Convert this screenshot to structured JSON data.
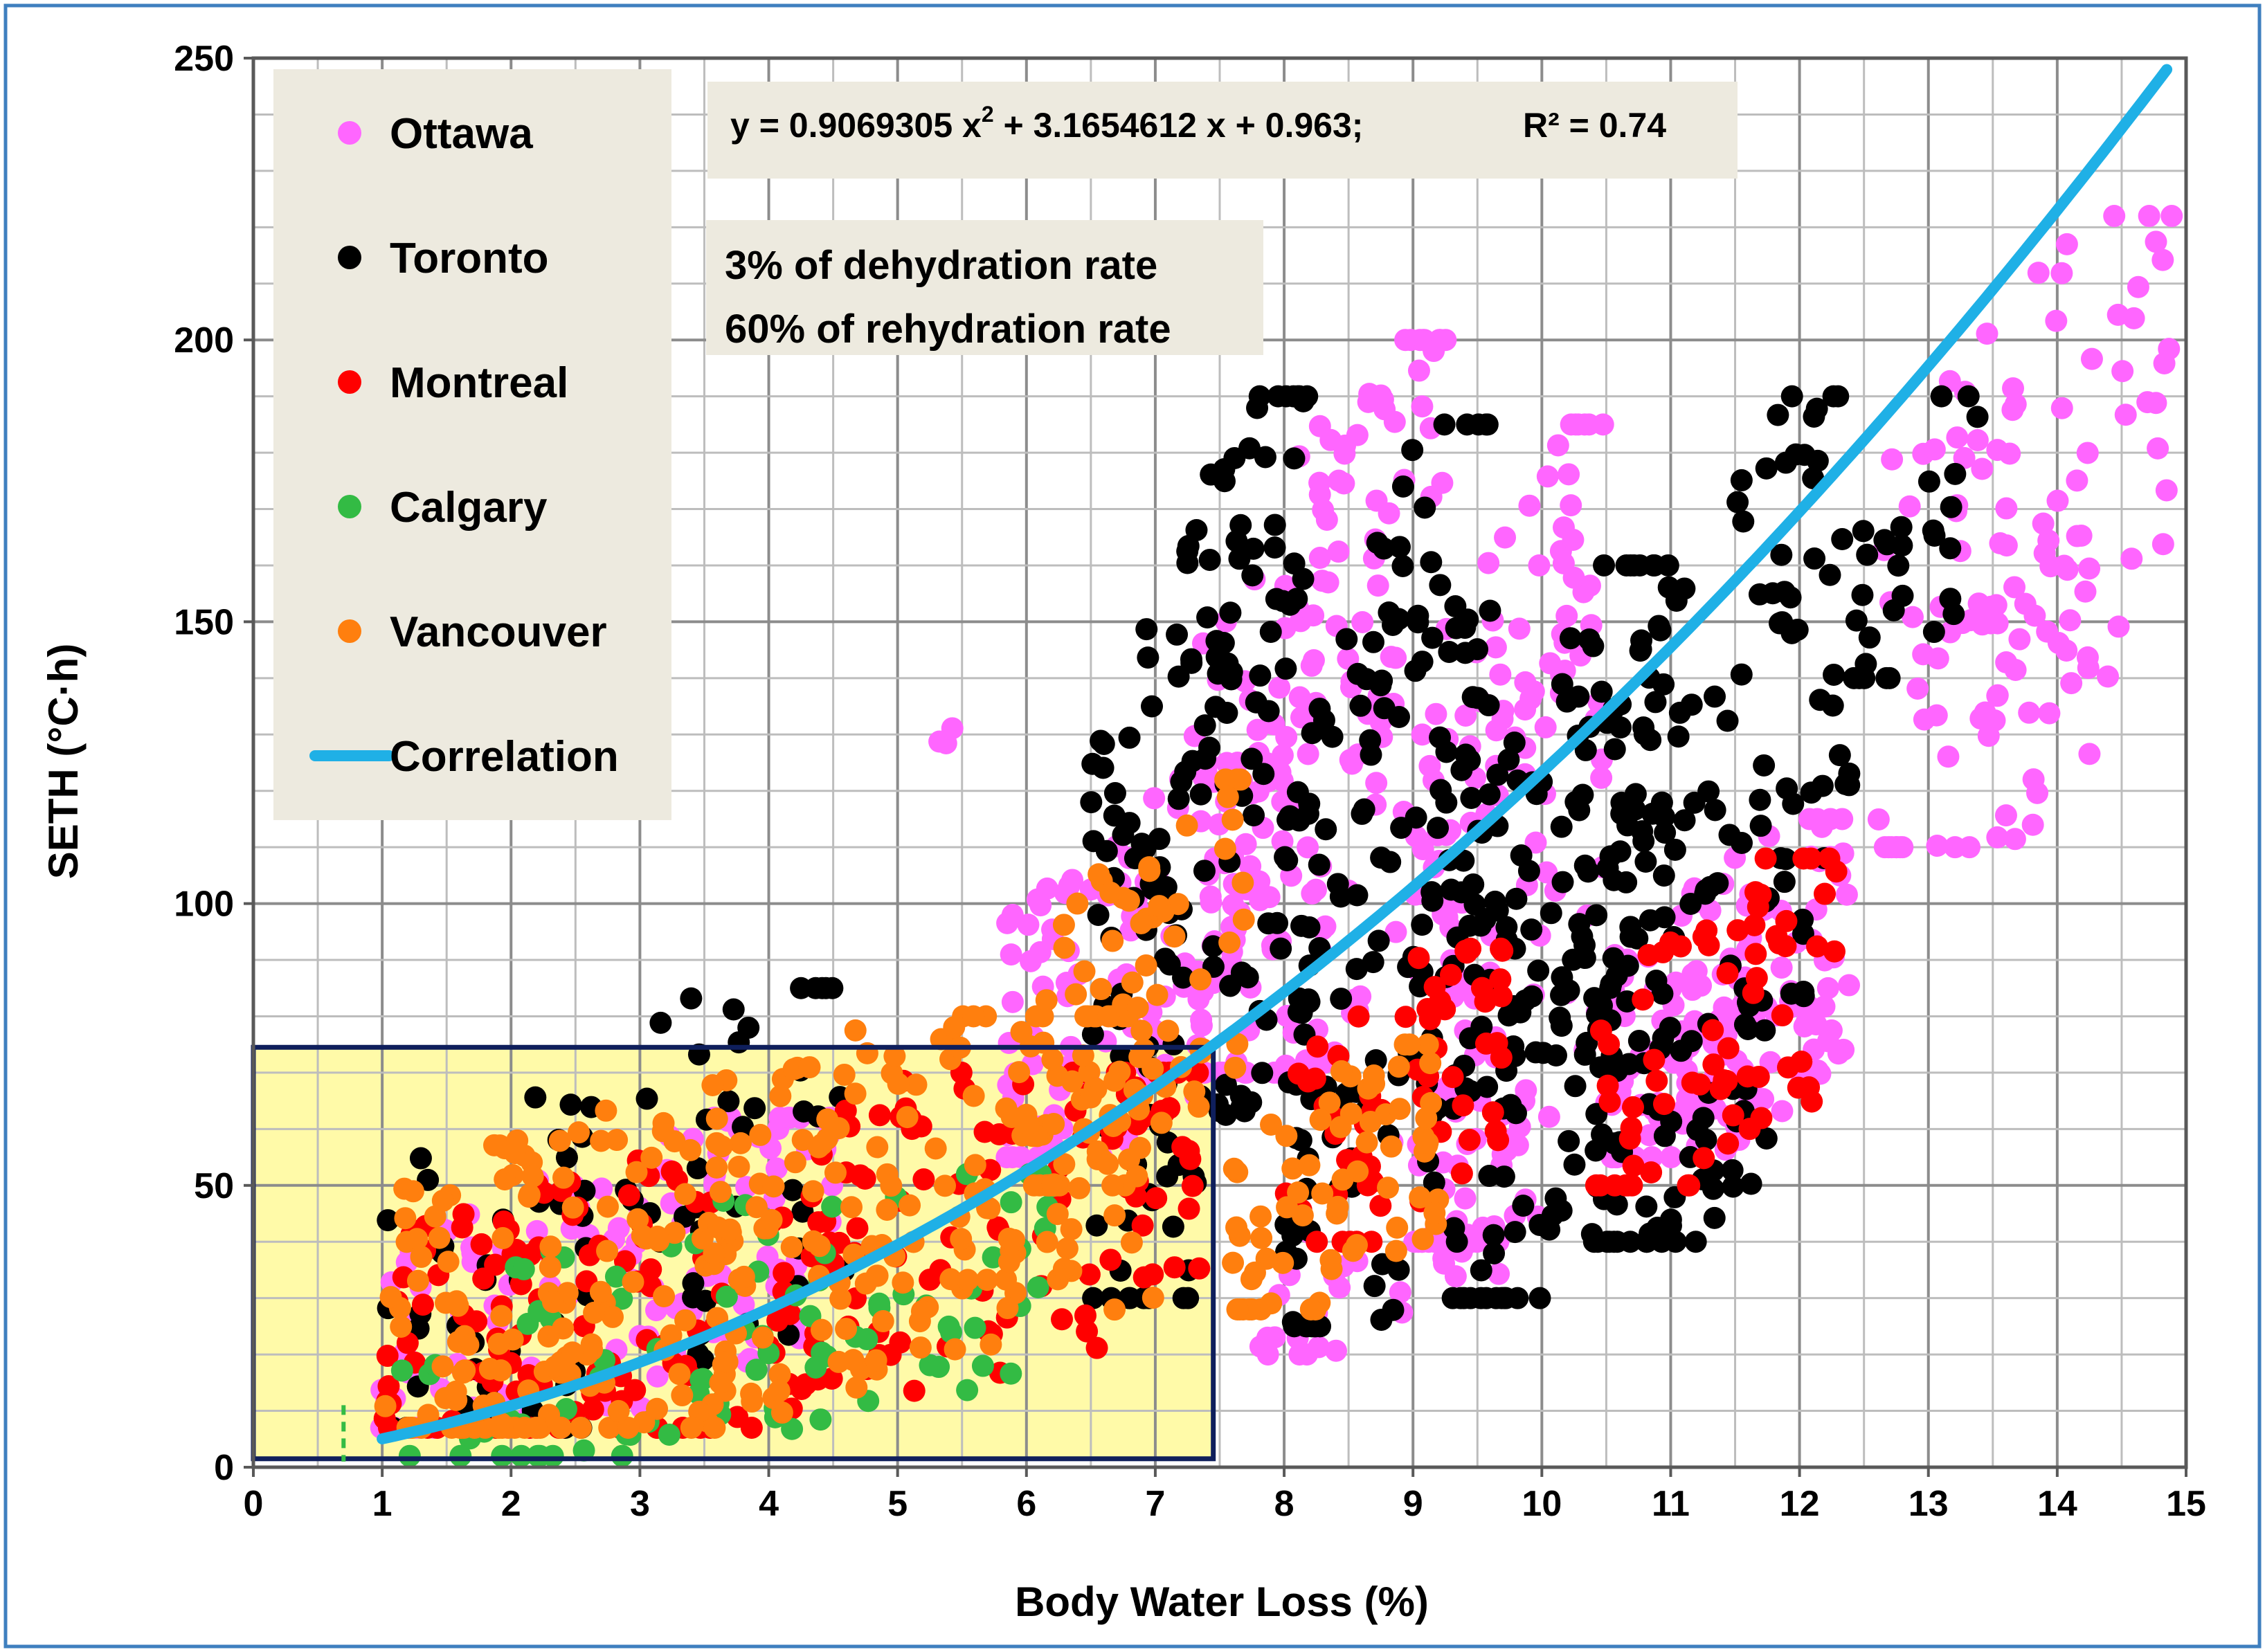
{
  "chart_data": {
    "type": "scatter",
    "title": "",
    "xlabel": "Body Water Loss (%)",
    "ylabel": "SETH (°C·h)",
    "xlim": [
      0,
      15
    ],
    "ylim": [
      0,
      250
    ],
    "x_ticks": [
      "0",
      "1",
      "2",
      "3",
      "4",
      "5",
      "6",
      "7",
      "8",
      "9",
      "10",
      "11",
      "12",
      "13",
      "14",
      "15"
    ],
    "y_ticks": [
      "0",
      "50",
      "100",
      "150",
      "200",
      "250"
    ],
    "grid": "major and minor gridlines",
    "legend_position": "top-left",
    "legend": [
      "Ottawa",
      "Toronto",
      "Montreal",
      "Calgary",
      "Vancouver",
      "Correlation"
    ],
    "equation": {
      "prefix": "y = 0.9069305 x",
      "sup": "2",
      "suffix": " + 3.1654612 x + 0.963;",
      "r2": "R² = 0.74"
    },
    "notes": [
      "3%  of  dehydration rate",
      "60%  of rehydration rate"
    ],
    "colors": {
      "Ottawa": "#ff66ff",
      "Toronto": "#000000",
      "Montreal": "#ff0000",
      "Calgary": "#33bb44",
      "Vancouver": "#ff7f0e",
      "Correlation": "#1fb0e6",
      "highlight_fill": "#fffaa8",
      "highlight_border": "#0f1f5c",
      "panel_fill": "#edeadf",
      "frame": "#3f7fbf"
    },
    "highlight_region": {
      "x": [
        0,
        7.45
      ],
      "y": [
        1.5,
        74.5
      ]
    },
    "correlation": {
      "a": 0.9069305,
      "b": 3.1654612,
      "c": 0.963,
      "x_range": [
        1,
        14.85
      ]
    },
    "series": [
      {
        "name": "Ottawa",
        "clusters": [
          {
            "x0": 0.95,
            "x1": 4.5,
            "ylo": 7,
            "yhi": 62,
            "n": 140,
            "seed": 11
          },
          {
            "x0": 5.8,
            "x1": 7.8,
            "ylo": 55,
            "yhi": 125,
            "n": 110,
            "seed": 12
          },
          {
            "x0": 7.3,
            "x1": 9.3,
            "ylo": 70,
            "yhi": 200,
            "n": 160,
            "seed": 13
          },
          {
            "x0": 9.0,
            "x1": 10.5,
            "ylo": 40,
            "yhi": 185,
            "n": 140,
            "seed": 14
          },
          {
            "x0": 10.5,
            "x1": 12.4,
            "ylo": 55,
            "yhi": 115,
            "n": 150,
            "seed": 15
          },
          {
            "x0": 12.6,
            "x1": 15.0,
            "ylo": 110,
            "yhi": 222,
            "n": 120,
            "seed": 16
          },
          {
            "x0": 5.3,
            "x1": 5.5,
            "ylo": 128,
            "yhi": 132,
            "n": 3,
            "seed": 17
          },
          {
            "x0": 7.8,
            "x1": 10.0,
            "ylo": 20,
            "yhi": 65,
            "n": 40,
            "seed": 18
          }
        ]
      },
      {
        "name": "Toronto",
        "clusters": [
          {
            "x0": 1.0,
            "x1": 4.7,
            "ylo": 7,
            "yhi": 85,
            "n": 90,
            "seed": 21
          },
          {
            "x0": 6.5,
            "x1": 8.2,
            "ylo": 30,
            "yhi": 190,
            "n": 170,
            "seed": 22
          },
          {
            "x0": 8.0,
            "x1": 9.6,
            "ylo": 25,
            "yhi": 185,
            "n": 150,
            "seed": 23
          },
          {
            "x0": 9.3,
            "x1": 11.0,
            "ylo": 30,
            "yhi": 160,
            "n": 150,
            "seed": 24
          },
          {
            "x0": 10.4,
            "x1": 12.4,
            "ylo": 40,
            "yhi": 190,
            "n": 160,
            "seed": 25
          },
          {
            "x0": 12.4,
            "x1": 13.4,
            "ylo": 140,
            "yhi": 190,
            "n": 30,
            "seed": 26
          }
        ]
      },
      {
        "name": "Montreal",
        "clusters": [
          {
            "x0": 1.0,
            "x1": 7.4,
            "ylo": 7,
            "yhi": 70,
            "n": 220,
            "seed": 31
          },
          {
            "x0": 8.0,
            "x1": 9.7,
            "ylo": 40,
            "yhi": 92,
            "n": 60,
            "seed": 32
          },
          {
            "x0": 10.4,
            "x1": 12.3,
            "ylo": 50,
            "yhi": 108,
            "n": 70,
            "seed": 33
          }
        ]
      },
      {
        "name": "Calgary",
        "clusters": [
          {
            "x0": 1.0,
            "x1": 6.2,
            "ylo": 2,
            "yhi": 52,
            "n": 90,
            "seed": 41
          }
        ]
      },
      {
        "name": "Vancouver",
        "clusters": [
          {
            "x0": 1.0,
            "x1": 7.0,
            "ylo": 7,
            "yhi": 80,
            "n": 320,
            "seed": 51
          },
          {
            "x0": 6.0,
            "x1": 7.7,
            "ylo": 50,
            "yhi": 122,
            "n": 80,
            "seed": 52
          },
          {
            "x0": 7.6,
            "x1": 9.2,
            "ylo": 28,
            "yhi": 75,
            "n": 70,
            "seed": 53
          }
        ]
      }
    ]
  }
}
